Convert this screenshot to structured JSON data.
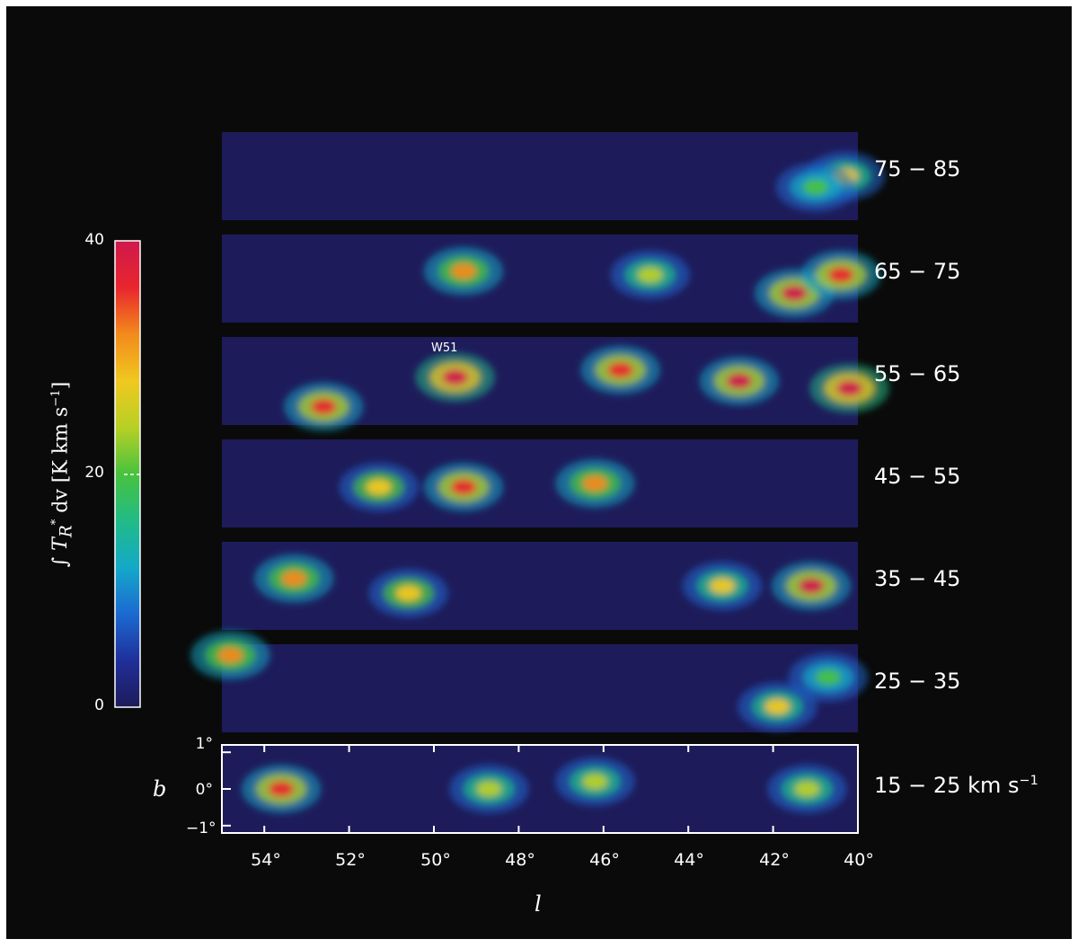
{
  "chart_data": {
    "type": "heatmap",
    "x_axis": {
      "label": "l",
      "range": [
        55,
        40
      ],
      "ticks": [
        "54°",
        "52°",
        "50°",
        "48°",
        "46°",
        "44°",
        "42°",
        "40°"
      ]
    },
    "y_axis": {
      "label": "b",
      "range": [
        -1.2,
        1.2
      ],
      "ticks": [
        "1°",
        "0°",
        "−1°"
      ]
    },
    "colorbar": {
      "label_text": "∫ T",
      "label_sub": "R",
      "label_sup": "*",
      "label_rest": " dv  [K km s",
      "label_exp": "−1",
      "label_close": "]",
      "range": [
        0,
        40
      ],
      "ticks": [
        "0",
        "20",
        "40"
      ],
      "colors": [
        "#1e1b5a",
        "#1f2f9a",
        "#1c6ad2",
        "#14a9c8",
        "#22bb86",
        "#48c23e",
        "#b8d024",
        "#f0c820",
        "#f28a1c",
        "#e8262e",
        "#d0184c"
      ]
    },
    "panels": [
      {
        "velocity": "75 − 85",
        "unit": ""
      },
      {
        "velocity": "65 − 75",
        "unit": ""
      },
      {
        "velocity": "55 − 65",
        "unit": ""
      },
      {
        "velocity": "45 − 55",
        "unit": ""
      },
      {
        "velocity": "35 − 45",
        "unit": ""
      },
      {
        "velocity": "25 − 35",
        "unit": ""
      },
      {
        "velocity": "15 − 25",
        "unit": "km s"
      }
    ],
    "unit_exp": "−1",
    "annotation": {
      "text": "W51",
      "l": 49.6,
      "panel": "55 − 65"
    },
    "emission_peaks": [
      {
        "panel": "75 − 85",
        "l": 40.3,
        "b": 0.0,
        "value": 26
      },
      {
        "panel": "75 − 85",
        "l": 41.0,
        "b": -0.3,
        "value": 20
      },
      {
        "panel": "65 − 75",
        "l": 49.3,
        "b": 0.2,
        "value": 33
      },
      {
        "panel": "65 − 75",
        "l": 41.5,
        "b": -0.4,
        "value": 38
      },
      {
        "panel": "65 − 75",
        "l": 40.4,
        "b": 0.1,
        "value": 34
      },
      {
        "panel": "65 − 75",
        "l": 44.9,
        "b": 0.1,
        "value": 24
      },
      {
        "panel": "55 − 65",
        "l": 49.5,
        "b": 0.1,
        "value": 40
      },
      {
        "panel": "55 − 65",
        "l": 52.6,
        "b": -0.7,
        "value": 36
      },
      {
        "panel": "55 − 65",
        "l": 42.8,
        "b": 0.0,
        "value": 38
      },
      {
        "panel": "55 − 65",
        "l": 40.2,
        "b": -0.2,
        "value": 40
      },
      {
        "panel": "55 − 65",
        "l": 45.6,
        "b": 0.3,
        "value": 36
      },
      {
        "panel": "45 − 55",
        "l": 49.3,
        "b": -0.1,
        "value": 36
      },
      {
        "panel": "45 − 55",
        "l": 51.3,
        "b": -0.1,
        "value": 28
      },
      {
        "panel": "45 − 55",
        "l": 46.2,
        "b": 0.0,
        "value": 30
      },
      {
        "panel": "35 − 45",
        "l": 41.1,
        "b": 0.0,
        "value": 38
      },
      {
        "panel": "35 − 45",
        "l": 50.6,
        "b": -0.2,
        "value": 28
      },
      {
        "panel": "35 − 45",
        "l": 43.2,
        "b": 0.0,
        "value": 26
      },
      {
        "panel": "35 − 45",
        "l": 53.3,
        "b": 0.2,
        "value": 30
      },
      {
        "panel": "25 − 35",
        "l": 41.9,
        "b": -0.5,
        "value": 26
      },
      {
        "panel": "25 − 35",
        "l": 54.8,
        "b": 0.9,
        "value": 30
      },
      {
        "panel": "25 − 35",
        "l": 40.7,
        "b": 0.3,
        "value": 20
      },
      {
        "panel": "15 − 25",
        "l": 53.6,
        "b": 0.0,
        "value": 34
      },
      {
        "panel": "15 − 25",
        "l": 48.7,
        "b": 0.0,
        "value": 22
      },
      {
        "panel": "15 − 25",
        "l": 46.2,
        "b": 0.2,
        "value": 24
      },
      {
        "panel": "15 − 25",
        "l": 41.2,
        "b": 0.0,
        "value": 22
      }
    ]
  }
}
